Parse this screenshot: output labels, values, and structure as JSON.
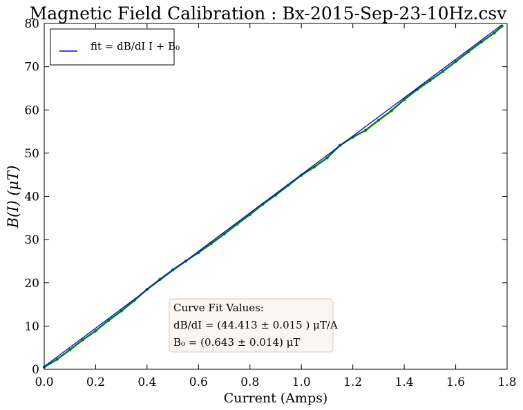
{
  "chart_data": {
    "type": "scatter",
    "title": "Magnetic Field Calibration : Bx-2015-Sep-23-10Hz.csv",
    "xlabel": "Current (Amps)",
    "ylabel": "B(I) (μT)",
    "xlim": [
      0,
      1.8
    ],
    "ylim": [
      0,
      80
    ],
    "xticks": [
      0.0,
      0.2,
      0.4,
      0.6,
      0.8,
      1.0,
      1.2,
      1.4,
      1.6,
      1.8
    ],
    "xtick_labels": [
      "0.0",
      "0.2",
      "0.4",
      "0.6",
      "0.8",
      "1.0",
      "1.2",
      "1.4",
      "1.6",
      "1.8"
    ],
    "yticks": [
      0,
      10,
      20,
      30,
      40,
      50,
      60,
      70,
      80
    ],
    "ytick_labels": [
      "0",
      "10",
      "20",
      "30",
      "40",
      "50",
      "60",
      "70",
      "80"
    ],
    "grid": false,
    "legend": {
      "placement": "top-left",
      "entries": [
        {
          "label": "fit = dB/dI I + B₀",
          "color": "#0000ff"
        }
      ]
    },
    "series": [
      {
        "kind": "scatter",
        "color": "#008000",
        "x": [
          0.0,
          0.05,
          0.1,
          0.15,
          0.2,
          0.25,
          0.3,
          0.35,
          0.4,
          0.45,
          0.5,
          0.55,
          0.6,
          0.65,
          0.7,
          0.75,
          0.8,
          0.85,
          0.9,
          0.95,
          1.0,
          1.05,
          1.1,
          1.15,
          1.2,
          1.25,
          1.3,
          1.35,
          1.4,
          1.45,
          1.5,
          1.55,
          1.6,
          1.65,
          1.7,
          1.75,
          1.78
        ],
        "y": [
          0.5,
          2.3,
          4.5,
          6.8,
          8.9,
          11.3,
          13.5,
          15.9,
          18.5,
          20.8,
          23.0,
          25.0,
          27.0,
          29.1,
          31.3,
          33.6,
          35.8,
          38.2,
          40.3,
          42.6,
          44.9,
          46.8,
          48.9,
          51.8,
          53.7,
          55.3,
          57.6,
          59.8,
          62.4,
          64.7,
          66.8,
          68.9,
          71.2,
          73.5,
          75.7,
          77.8,
          79.4
        ]
      },
      {
        "kind": "line",
        "name": "fit",
        "color": "#0000ff",
        "x": [
          0.0,
          1.78
        ],
        "y": [
          0.643,
          79.7
        ]
      }
    ],
    "annotation": {
      "lines": [
        "Curve Fit Values:",
        "dB/dI = (44.413 ± 0.015 ) μT/A",
        "B₀ = (0.643 ± 0.014) μT"
      ]
    }
  }
}
